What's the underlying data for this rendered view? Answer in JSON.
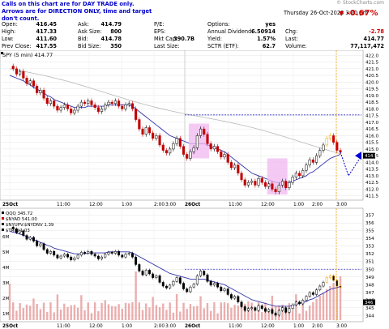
{
  "notice": {
    "line1": "Calls on this chart are for DAY TRADE only.",
    "line2": "Arrows are for DIRECTION ONLY, time and target don't count."
  },
  "watermark": "© StockCharts.com",
  "datetime": "Thursday 26-Oct-2023 3:20 pm",
  "pct_change": "-0.67%",
  "quote": {
    "col1": [
      {
        "label": "Open:",
        "value": "416.45"
      },
      {
        "label": "High:",
        "value": "417.33"
      },
      {
        "label": "Low:",
        "value": "411.60"
      },
      {
        "label": "Prev Close:",
        "value": "417.55"
      }
    ],
    "col2": [
      {
        "label": "Ask:",
        "value": "414.79"
      },
      {
        "label": "Ask Size:",
        "value": "800"
      },
      {
        "label": "Bid:",
        "value": "414.78"
      },
      {
        "label": "Bid Size:",
        "value": "350"
      }
    ],
    "col3": [
      {
        "label": "P/E:",
        "value": ""
      },
      {
        "label": "EPS:",
        "value": ""
      },
      {
        "label": "Mkt Cap:",
        "value": "390.7B"
      },
      {
        "label": "Last Size:",
        "value": ""
      }
    ],
    "col4": [
      {
        "label": "Options:",
        "value": "yes"
      },
      {
        "label": "Annual Dividend:",
        "value": "6.50914"
      },
      {
        "label": "Yield:",
        "value": "1.57%"
      },
      {
        "label": "SCTR (ETF):",
        "value": "62.7"
      }
    ],
    "col5": [
      {
        "label": "",
        "value": ""
      },
      {
        "label": "Chg:",
        "value": "-2.78"
      },
      {
        "label": "Last:",
        "value": "414.77"
      },
      {
        "label": "Volume:",
        "value": "77,117,472"
      }
    ]
  },
  "chart_data": [
    {
      "type": "line",
      "title": "SPY (5 min) 414.77",
      "ylim": [
        411.3,
        422.2
      ],
      "ticks": [
        "422.0",
        "421.5",
        "421.0",
        "420.5",
        "420.0",
        "419.5",
        "419.0",
        "418.5",
        "418.0",
        "417.5",
        "417.0",
        "416.5",
        "416.0",
        "415.5",
        "415.0",
        "414.5",
        "414.0",
        "413.5",
        "413.0",
        "412.5",
        "412.0",
        "411.5"
      ],
      "x_labels": [
        "25Oct",
        "11:00",
        "12:00",
        "1:00",
        "2:00",
        "3:00",
        "26Oct",
        "11:00",
        "12:00",
        "1:00",
        "2:00",
        "3:00"
      ],
      "price": [
        421.2,
        421.0,
        420.6,
        420.8,
        420.3,
        419.9,
        420.1,
        419.7,
        419.2,
        419.4,
        418.8,
        418.4,
        418.6,
        418.2,
        417.9,
        418.1,
        418.3,
        418.0,
        417.7,
        417.9,
        418.2,
        418.5,
        418.4,
        418.6,
        418.3,
        418.1,
        417.8,
        418.0,
        418.3,
        418.5,
        418.4,
        418.6,
        418.2,
        418.0,
        418.3,
        418.4,
        418.0,
        417.2,
        416.5,
        416.1,
        416.6,
        416.2,
        415.8,
        416.0,
        415.3,
        414.9,
        414.7,
        415.0,
        415.4,
        415.8,
        415.2,
        414.6,
        414.3,
        414.8,
        415.1,
        416.0,
        416.5,
        416.1,
        415.4,
        415.0,
        415.2,
        414.8,
        414.4,
        414.6,
        414.0,
        413.6,
        413.8,
        413.2,
        412.7,
        412.3,
        412.5,
        412.6,
        412.3,
        412.8,
        412.5,
        412.2,
        412.4,
        412.0,
        411.8,
        412.3,
        412.6,
        412.1,
        412.5,
        412.9,
        413.2,
        413.0,
        413.4,
        413.8,
        414.2,
        414.0,
        414.5,
        414.9,
        415.3,
        415.8,
        416.0,
        415.5,
        414.9,
        414.77
      ],
      "ma_fast": [
        420.5,
        420.4,
        420.3,
        420.2,
        420.1,
        419.9,
        419.8,
        419.6,
        419.5,
        419.3,
        419.2,
        419.0,
        418.9,
        418.7,
        418.6,
        418.5,
        418.4,
        418.3,
        418.2,
        418.1,
        418.1,
        418.1,
        418.1,
        418.2,
        418.2,
        418.2,
        418.2,
        418.2,
        418.2,
        418.3,
        418.3,
        418.3,
        418.3,
        418.3,
        418.3,
        418.3,
        418.2,
        418.0,
        417.8,
        417.6,
        417.4,
        417.2,
        417.0,
        416.8,
        416.6,
        416.4,
        416.2,
        416.0,
        415.9,
        415.8,
        415.7,
        415.6,
        415.5,
        415.4,
        415.4,
        415.4,
        415.4,
        415.4,
        415.3,
        415.2,
        415.1,
        415.0,
        414.9,
        414.8,
        414.6,
        414.4,
        414.2,
        414.0,
        413.8,
        413.6,
        413.4,
        413.2,
        413.1,
        413.0,
        412.9,
        412.8,
        412.7,
        412.6,
        412.5,
        412.5,
        412.5,
        412.5,
        412.5,
        412.6,
        412.7,
        412.8,
        412.9,
        413.0,
        413.2,
        413.3,
        413.5,
        413.7,
        413.9,
        414.1,
        414.3,
        414.4,
        414.5,
        414.6
      ],
      "ma_slow_start": 421.0,
      "ma_slow_end": 414.8,
      "resistance": 417.55,
      "projection": [
        414.77,
        413.0,
        414.5
      ]
    },
    {
      "type": "line",
      "legend": [
        "QQQ 345.72",
        "$NYAD 541.00",
        "$NYUPV:$NYDNV 1.39",
        "$TRIN 1.03"
      ],
      "ylim": [
        343.4,
        357.6
      ],
      "ticks": [
        "357",
        "356",
        "355",
        "354",
        "353",
        "352",
        "351",
        "350",
        "349",
        "348",
        "347",
        "346",
        "345",
        "344"
      ],
      "volume_ticks": [
        "6M",
        "5M",
        "4M",
        "3M",
        "2M",
        "1M"
      ],
      "resistance": 350.0
    }
  ]
}
